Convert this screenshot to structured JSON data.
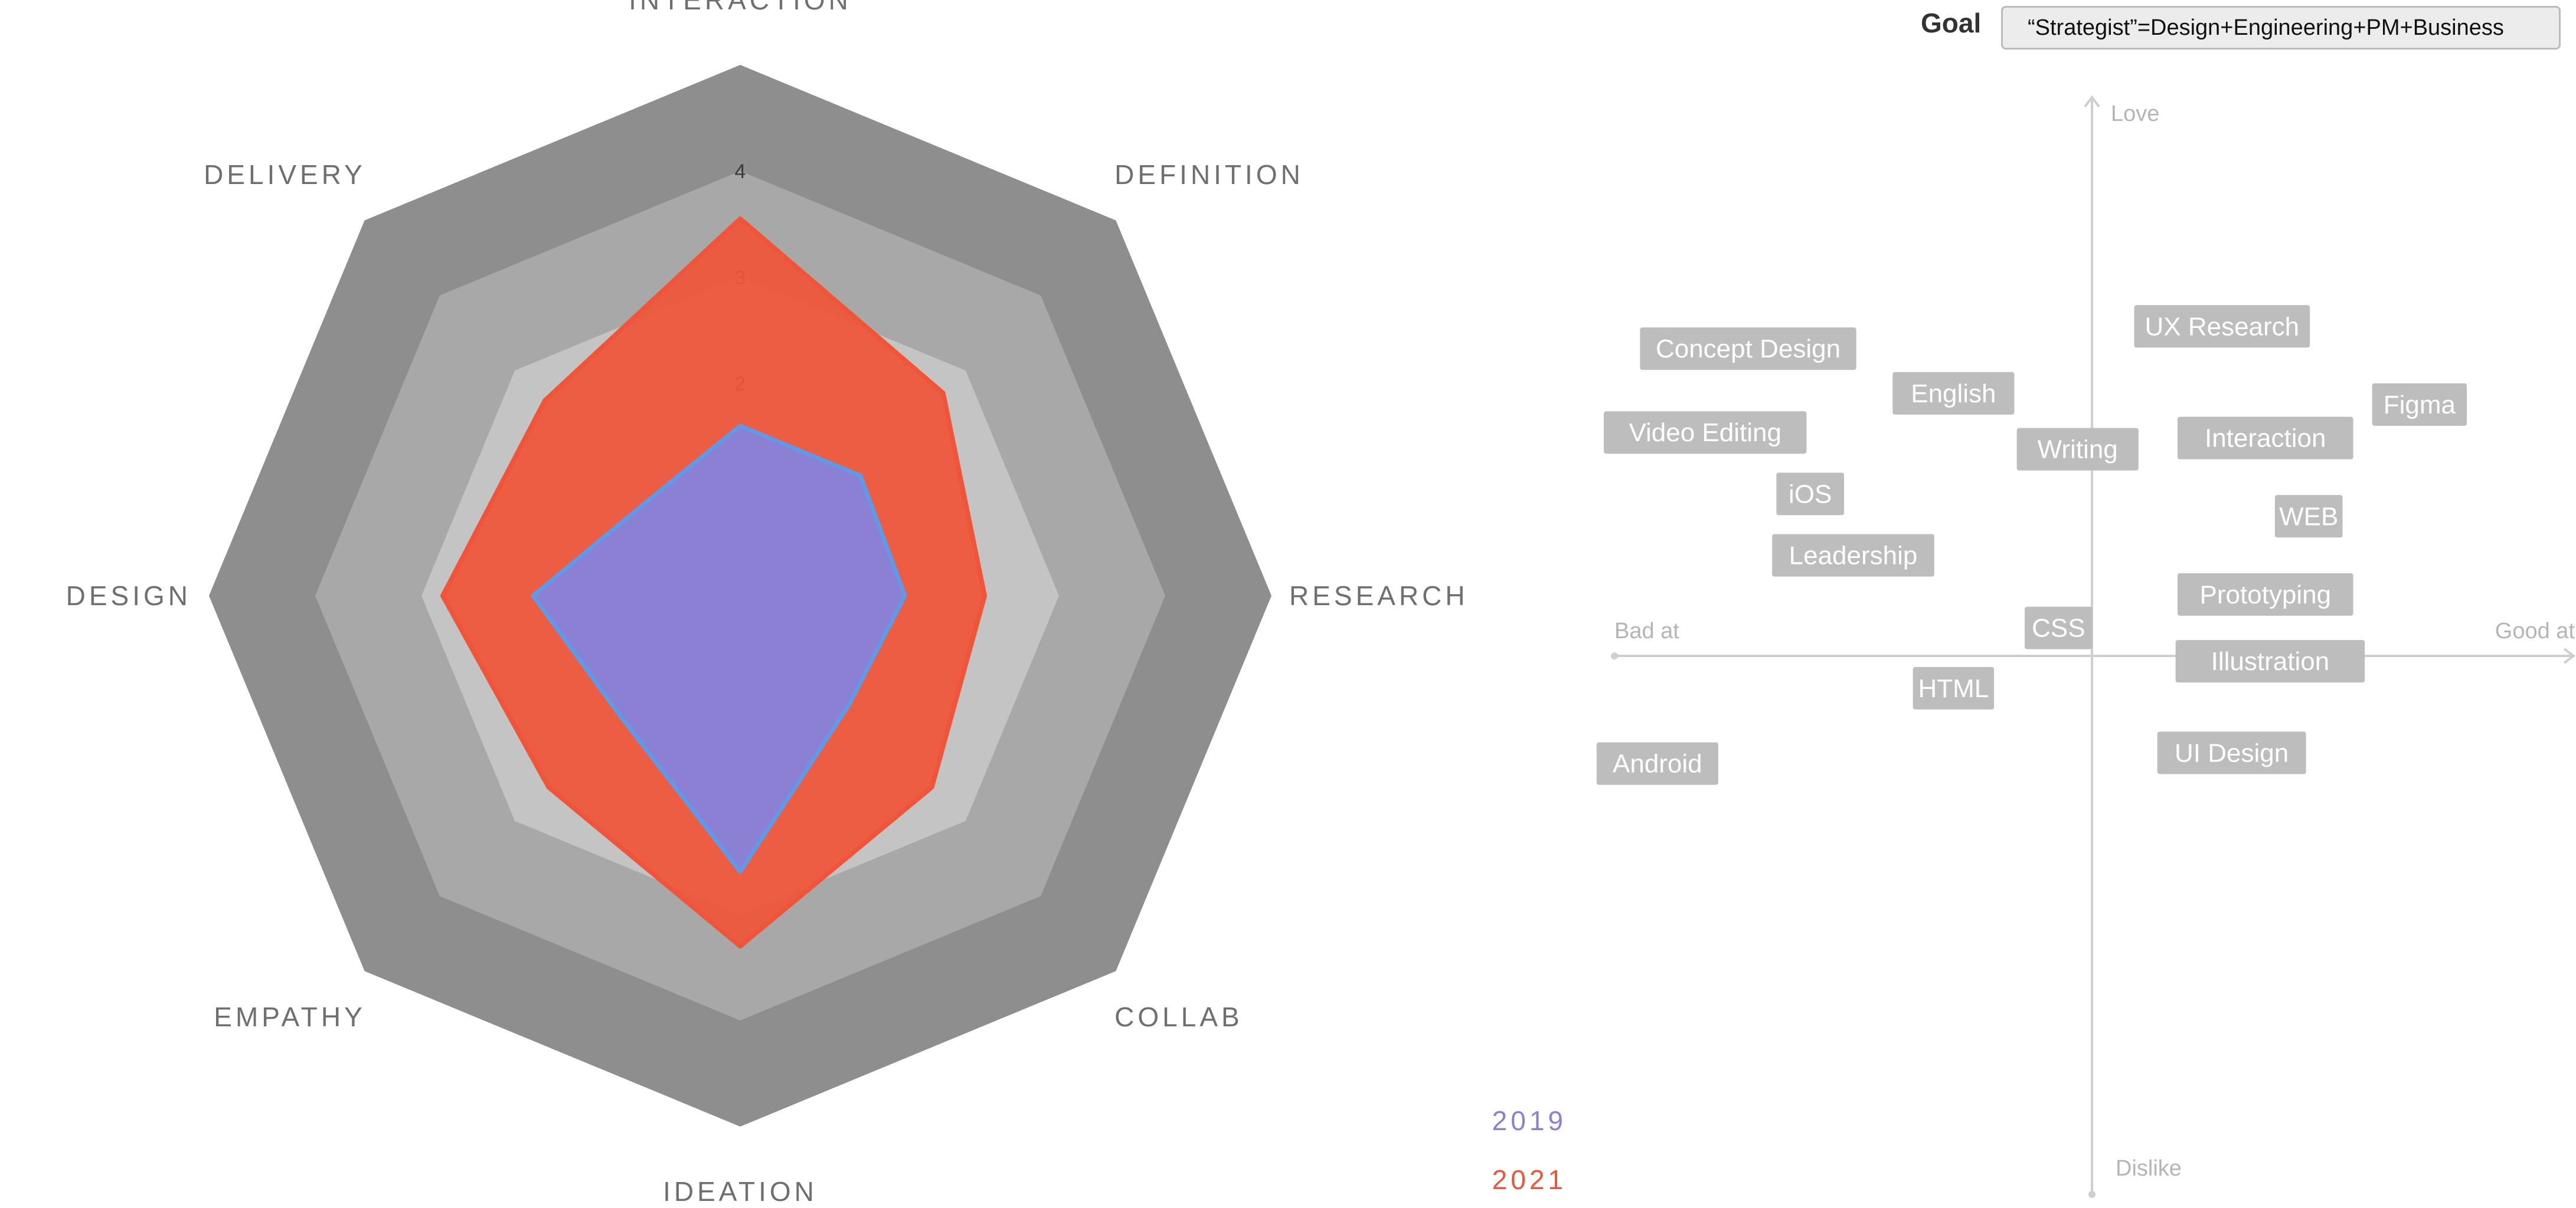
{
  "goal": {
    "label": "Goal",
    "value": "“Strategist”=Design+Engineering+PM+Business"
  },
  "colors": {
    "series_2019": "#8b80d4",
    "series_2019_stroke": "#5f9ae8",
    "series_2021": "#f0553a",
    "ring_outer": "#8e8e8e",
    "ring_middle": "#a8a8a8",
    "ring_inner": "#c4c4c4",
    "tag_bg": "#bdbdbd",
    "axis": "#cfcfcf"
  },
  "chart_data": [
    {
      "type": "radar",
      "categories": [
        "INTERACTION",
        "DEFINITION",
        "RESEARCH",
        "COLLAB",
        "IDEATION",
        "EMPATHY",
        "DESIGN",
        "DELIVERY"
      ],
      "tick_labels": [
        "1",
        "2",
        "3",
        "4"
      ],
      "rmax": 5,
      "series": [
        {
          "name": "2019",
          "values": [
            1.6,
            1.6,
            1.55,
            1.45,
            2.6,
            1.6,
            1.95,
            1.25
          ]
        },
        {
          "name": "2021",
          "values": [
            3.55,
            2.7,
            2.3,
            2.55,
            3.3,
            2.55,
            2.8,
            2.6
          ]
        }
      ],
      "legend": {
        "position": "bottom-right",
        "entries": [
          "2019",
          "2021"
        ]
      }
    },
    {
      "type": "scatter",
      "xlabel_negative": "Bad at",
      "xlabel_positive": "Good at",
      "ylabel_positive": "Love",
      "ylabel_negative": "Dislike",
      "xlim": [
        -10,
        10
      ],
      "ylim": [
        -10,
        10
      ],
      "points": [
        {
          "label": "Concept Design",
          "x": -7.2,
          "y": 5.5
        },
        {
          "label": "English",
          "x": -2.9,
          "y": 4.7
        },
        {
          "label": "Video Editing",
          "x": -8.1,
          "y": 4.0
        },
        {
          "label": "Writing",
          "x": -0.3,
          "y": 3.7
        },
        {
          "label": "iOS",
          "x": -5.9,
          "y": 2.9
        },
        {
          "label": "Leadership",
          "x": -5.0,
          "y": 1.8
        },
        {
          "label": "CSS",
          "x": -0.7,
          "y": 0.5
        },
        {
          "label": "HTML",
          "x": -2.9,
          "y": -0.6
        },
        {
          "label": "Android",
          "x": -9.1,
          "y": -2.0
        },
        {
          "label": "UX Research",
          "x": 2.7,
          "y": 5.9
        },
        {
          "label": "Figma",
          "x": 6.8,
          "y": 4.5
        },
        {
          "label": "Interaction",
          "x": 3.6,
          "y": 3.9
        },
        {
          "label": "WEB",
          "x": 4.5,
          "y": 2.5
        },
        {
          "label": "Prototyping",
          "x": 3.6,
          "y": 1.1
        },
        {
          "label": "Illustration",
          "x": 3.7,
          "y": -0.1
        },
        {
          "label": "UI Design",
          "x": 2.9,
          "y": -1.8
        }
      ]
    }
  ]
}
